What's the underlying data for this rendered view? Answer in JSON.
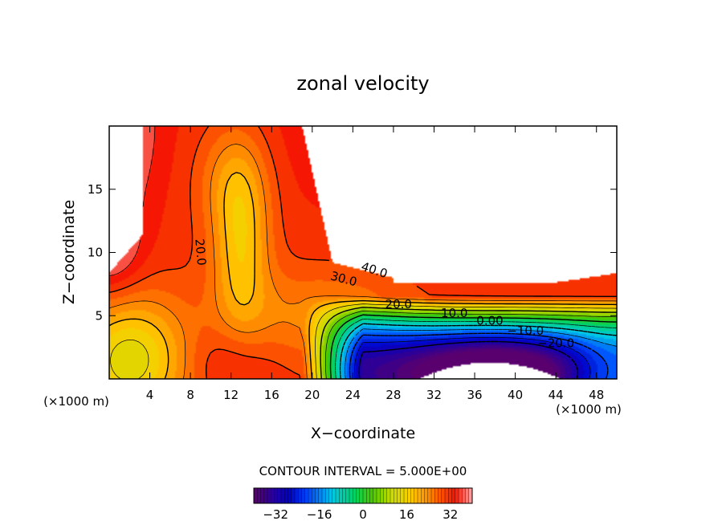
{
  "chart_data": {
    "type": "heatmap",
    "title": "zonal velocity",
    "xlabel": "X−coordinate",
    "ylabel": "Z−coordinate",
    "x_unit_left": "(×1000 m)",
    "x_unit_right": "(×1000 m)",
    "xlim": [
      0,
      50
    ],
    "ylim": [
      0,
      20
    ],
    "xticks": [
      4,
      8,
      12,
      16,
      20,
      24,
      28,
      32,
      36,
      40,
      44,
      48
    ],
    "xtick_labels": [
      "4",
      "8",
      "12",
      "16",
      "20",
      "24",
      "28",
      "32",
      "36",
      "40",
      "44",
      "48"
    ],
    "yticks": [
      5,
      10,
      15
    ],
    "ytick_labels": [
      "5",
      "10",
      "15"
    ],
    "contour_interval_text": "CONTOUR INTERVAL = 5.000E+00",
    "colorbar": {
      "range": [
        -40,
        40
      ],
      "ticks": [
        -32,
        -16,
        0,
        16,
        32
      ],
      "tick_labels": [
        "−32",
        "−16",
        "0",
        "16",
        "32"
      ]
    },
    "contour_labels": [
      {
        "text": "20.0",
        "x": 8.6,
        "z": 10.0,
        "rotate": 85
      },
      {
        "text": "40.0",
        "x": 26.0,
        "z": 8.3,
        "rotate": 18
      },
      {
        "text": "30.0",
        "x": 23.0,
        "z": 7.6,
        "rotate": 15
      },
      {
        "text": "20.0",
        "x": 28.5,
        "z": 5.6,
        "rotate": 0
      },
      {
        "text": "10.0",
        "x": 34.0,
        "z": 4.9,
        "rotate": 0
      },
      {
        "text": "0.00",
        "x": 37.5,
        "z": 4.3,
        "rotate": 0
      },
      {
        "text": "−10.0",
        "x": 41.0,
        "z": 3.5,
        "rotate": 0
      },
      {
        "text": "−20.0",
        "x": 44.0,
        "z": 2.5,
        "rotate": 0
      }
    ]
  }
}
